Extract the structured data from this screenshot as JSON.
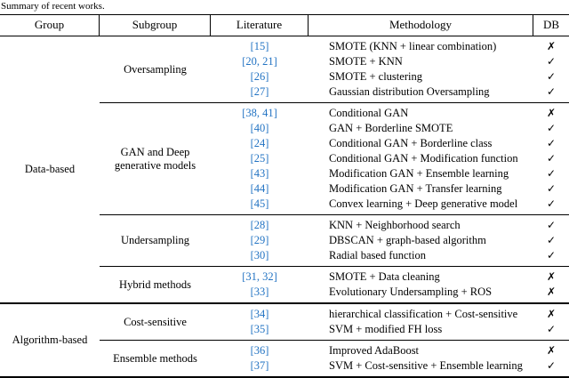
{
  "caption": "Summary of recent works.",
  "colors": {
    "citation": "#2273c3",
    "rule": "#000000"
  },
  "table": {
    "headers": [
      "Group",
      "Subgroup",
      "Literature",
      "Methodology",
      "DB"
    ],
    "groups": [
      {
        "name": "Data-based",
        "subgroups": [
          {
            "name": "Oversampling",
            "rows": [
              {
                "literature": "[15]",
                "methodology": "SMOTE (KNN + linear combination)",
                "db": "✗"
              },
              {
                "literature": "[20, 21]",
                "methodology": "SMOTE + KNN",
                "db": "✓"
              },
              {
                "literature": "[26]",
                "methodology": "SMOTE + clustering",
                "db": "✓"
              },
              {
                "literature": "[27]",
                "methodology": "Gaussian distribution Oversampling",
                "db": "✓"
              }
            ]
          },
          {
            "name": "GAN and Deep generative models",
            "rows": [
              {
                "literature": "[38, 41]",
                "methodology": "Conditional GAN",
                "db": "✗"
              },
              {
                "literature": "[40]",
                "methodology": "GAN + Borderline SMOTE",
                "db": "✓"
              },
              {
                "literature": "[24]",
                "methodology": "Conditional GAN + Borderline class",
                "db": "✓"
              },
              {
                "literature": "[25]",
                "methodology": "Conditional GAN + Modification function",
                "db": "✓"
              },
              {
                "literature": "[43]",
                "methodology": "Modification GAN + Ensemble learning",
                "db": "✓"
              },
              {
                "literature": "[44]",
                "methodology": "Modification GAN + Transfer learning",
                "db": "✓"
              },
              {
                "literature": "[45]",
                "methodology": "Convex learning + Deep generative model",
                "db": "✓"
              }
            ]
          },
          {
            "name": "Undersampling",
            "rows": [
              {
                "literature": "[28]",
                "methodology": "KNN + Neighborhood search",
                "db": "✓"
              },
              {
                "literature": "[29]",
                "methodology": "DBSCAN + graph-based algorithm",
                "db": "✓"
              },
              {
                "literature": "[30]",
                "methodology": "Radial based function",
                "db": "✓"
              }
            ]
          },
          {
            "name": "Hybrid methods",
            "rows": [
              {
                "literature": "[31, 32]",
                "methodology": "SMOTE + Data cleaning",
                "db": "✗"
              },
              {
                "literature": "[33]",
                "methodology": "Evolutionary Undersampling + ROS",
                "db": "✗"
              }
            ]
          }
        ]
      },
      {
        "name": "Algorithm-based",
        "subgroups": [
          {
            "name": "Cost-sensitive",
            "rows": [
              {
                "literature": "[34]",
                "methodology": "hierarchical classification + Cost-sensitive",
                "db": "✗"
              },
              {
                "literature": "[35]",
                "methodology": "SVM + modified FH loss",
                "db": "✓"
              }
            ]
          },
          {
            "name": "Ensemble methods",
            "rows": [
              {
                "literature": "[36]",
                "methodology": "Improved AdaBoost",
                "db": "✗"
              },
              {
                "literature": "[37]",
                "methodology": "SVM + Cost-sensitive + Ensemble learning",
                "db": "✓"
              }
            ]
          }
        ]
      }
    ]
  }
}
